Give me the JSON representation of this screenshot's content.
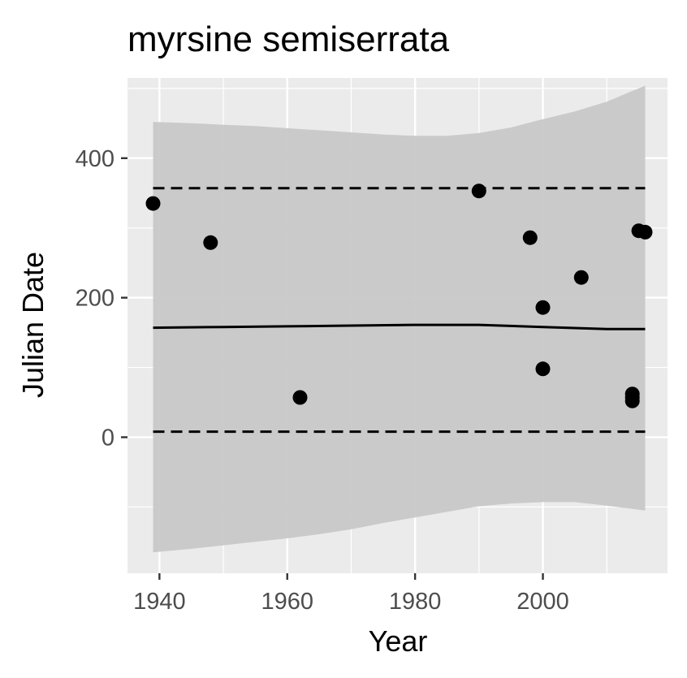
{
  "chart_data": {
    "type": "scatter",
    "title": "myrsine semiserrata",
    "xlabel": "Year",
    "ylabel": "Julian Date",
    "xlim": [
      1935,
      2019.5
    ],
    "ylim": [
      -195,
      515
    ],
    "x_ticks": [
      1940,
      1960,
      1980,
      2000
    ],
    "y_ticks": [
      0,
      200,
      400
    ],
    "grid": true,
    "legend": "none",
    "colors": {
      "panel": "#ebebeb",
      "grid": "#ffffff",
      "ribbon": "#c8c8c8",
      "points": "#000000",
      "tick_text": "#4d4d4d"
    },
    "points": {
      "x": [
        1939,
        1948,
        1962,
        1990,
        1998,
        2000,
        2000,
        2006,
        2014,
        2014,
        2014,
        2015,
        2016
      ],
      "y": [
        335,
        279,
        57,
        353,
        286,
        186,
        98,
        229,
        52,
        57,
        62,
        296,
        294
      ]
    },
    "trend": {
      "x": [
        1939,
        1950,
        1960,
        1970,
        1980,
        1990,
        2000,
        2010,
        2016
      ],
      "y": [
        157,
        158,
        159,
        160,
        161,
        161,
        158,
        155,
        155
      ]
    },
    "ribbon": {
      "x": [
        1939,
        1945,
        1950,
        1955,
        1960,
        1965,
        1970,
        1975,
        1980,
        1985,
        1990,
        1995,
        2000,
        2005,
        2010,
        2016
      ],
      "upper": [
        452,
        450,
        448,
        446,
        443,
        440,
        437,
        434,
        432,
        432,
        436,
        444,
        456,
        467,
        481,
        504
      ],
      "lower": [
        -165,
        -160,
        -155,
        -150,
        -145,
        -139,
        -132,
        -123,
        -115,
        -107,
        -99,
        -95,
        -93,
        -93,
        -98,
        -105
      ]
    },
    "upper_bound": {
      "x": [
        1939,
        2016
      ],
      "y": [
        357,
        357
      ]
    },
    "lower_bound": {
      "x": [
        1939,
        2016
      ],
      "y": [
        8,
        8
      ]
    }
  }
}
